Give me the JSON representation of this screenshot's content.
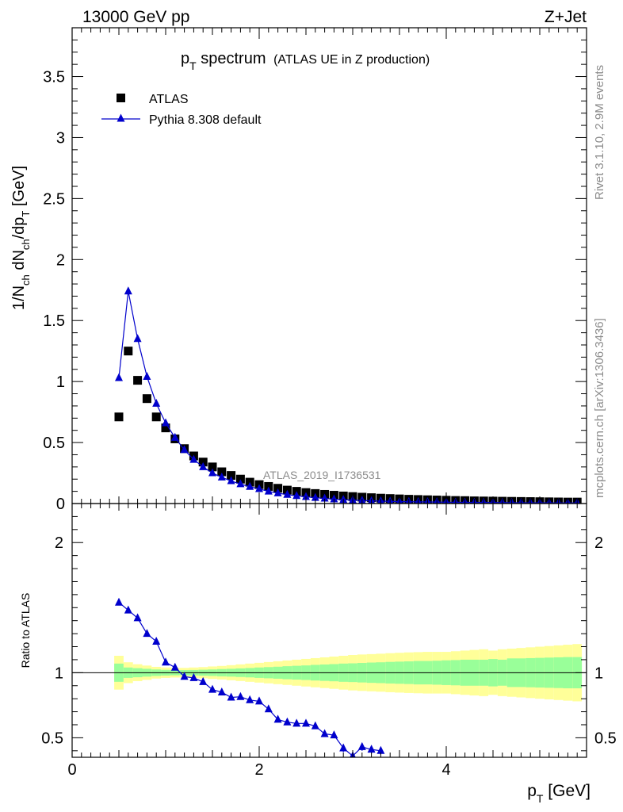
{
  "header": {
    "left": "13000 GeV pp",
    "right": "Z+Jet"
  },
  "title": {
    "main": "p",
    "main_sub": "T",
    "main_rest": " spectrum",
    "paren": "(ATLAS UE in Z production)"
  },
  "side_labels": {
    "top": "Rivet 3.1.10,  2.9M events",
    "bottom": "mcplots.cern.ch [arXiv:1306.3436]"
  },
  "watermark": "ATLAS_2019_I1736531",
  "colors": {
    "data": "#000000",
    "mc": "#0000cc",
    "band_inner": "#99ff99",
    "band_outer": "#ffff99"
  },
  "chart_data": [
    {
      "type": "scatter",
      "title": "pT spectrum (ATLAS UE in Z production)",
      "ylabel_parts": [
        "1/N",
        "ch",
        " dN",
        "ch",
        "/dp",
        "T",
        " [GeV]"
      ],
      "xlim": [
        0,
        5.5
      ],
      "ylim": [
        0,
        3.9
      ],
      "yticks": [
        0,
        0.5,
        1,
        1.5,
        2,
        2.5,
        3,
        3.5
      ],
      "ytick_labels": [
        "0",
        "0.5",
        "1",
        "1.5",
        "2",
        "2.5",
        "3",
        "3.5"
      ],
      "legend": {
        "position": "top-left",
        "entries": [
          "ATLAS",
          "Pythia 8.308 default"
        ]
      },
      "series": [
        {
          "name": "ATLAS",
          "marker": "square",
          "x": [
            0.5,
            0.6,
            0.7,
            0.8,
            0.9,
            1.0,
            1.1,
            1.2,
            1.3,
            1.4,
            1.5,
            1.6,
            1.7,
            1.8,
            1.9,
            2.0,
            2.1,
            2.2,
            2.3,
            2.4,
            2.5,
            2.6,
            2.7,
            2.8,
            2.9,
            3.0,
            3.1,
            3.2,
            3.3,
            3.4,
            3.5,
            3.6,
            3.7,
            3.8,
            3.9,
            4.0,
            4.1,
            4.2,
            4.3,
            4.4,
            4.5,
            4.6,
            4.7,
            4.8,
            4.9,
            5.0,
            5.1,
            5.2,
            5.3,
            5.4
          ],
          "y": [
            0.71,
            1.25,
            1.01,
            0.86,
            0.71,
            0.62,
            0.53,
            0.45,
            0.39,
            0.34,
            0.3,
            0.26,
            0.23,
            0.2,
            0.175,
            0.155,
            0.14,
            0.125,
            0.11,
            0.1,
            0.09,
            0.082,
            0.075,
            0.068,
            0.062,
            0.057,
            0.052,
            0.048,
            0.044,
            0.041,
            0.038,
            0.035,
            0.033,
            0.031,
            0.029,
            0.027,
            0.025,
            0.024,
            0.022,
            0.021,
            0.02,
            0.019,
            0.018,
            0.017,
            0.016,
            0.015,
            0.014,
            0.013,
            0.012,
            0.012
          ]
        },
        {
          "name": "Pythia 8.308 default",
          "marker": "triangle",
          "x": [
            0.5,
            0.6,
            0.7,
            0.8,
            0.9,
            1.0,
            1.1,
            1.2,
            1.3,
            1.4,
            1.5,
            1.6,
            1.7,
            1.8,
            1.9,
            2.0,
            2.1,
            2.2,
            2.3,
            2.4,
            2.5,
            2.6,
            2.7,
            2.8,
            2.9,
            3.0,
            3.1,
            3.2,
            3.3,
            3.4,
            3.5,
            3.6,
            3.7,
            3.8,
            3.9,
            4.0,
            4.1,
            4.2,
            4.3,
            4.4,
            4.5,
            4.6,
            4.7,
            4.8,
            4.9,
            5.0,
            5.1,
            5.2,
            5.3,
            5.4
          ],
          "y": [
            1.03,
            1.74,
            1.35,
            1.04,
            0.82,
            0.66,
            0.54,
            0.44,
            0.36,
            0.3,
            0.25,
            0.215,
            0.185,
            0.16,
            0.138,
            0.12,
            0.1,
            0.085,
            0.073,
            0.063,
            0.055,
            0.048,
            0.042,
            0.036,
            0.031,
            0.028,
            0.025,
            0.022,
            0.02,
            0.018,
            0.016,
            0.015,
            0.014,
            0.013,
            0.012,
            0.011,
            0.01,
            0.01,
            0.009,
            0.009,
            0.008,
            0.008,
            0.007,
            0.007,
            0.006,
            0.006,
            0.006,
            0.005,
            0.005,
            0.005
          ]
        }
      ]
    },
    {
      "type": "line",
      "ylabel": "Ratio to ATLAS",
      "xlabel_parts": [
        "p",
        "T",
        " [GeV]"
      ],
      "xlim": [
        0,
        5.5
      ],
      "ylim": [
        0.35,
        2.3
      ],
      "xticks": [
        0,
        2,
        4
      ],
      "xtick_labels": [
        "0",
        "2",
        "4"
      ],
      "yticks": [
        0.5,
        1,
        2
      ],
      "ytick_labels": [
        "0.5",
        "1",
        "2"
      ],
      "reference_line": 1,
      "band_x_edges": [
        0.45,
        0.55,
        0.65,
        0.75,
        0.85,
        0.95,
        1.05,
        1.15,
        1.25,
        1.35,
        1.45,
        1.55,
        1.65,
        1.75,
        1.85,
        1.95,
        2.05,
        2.15,
        2.25,
        2.35,
        2.45,
        2.55,
        2.65,
        2.75,
        2.85,
        2.95,
        3.05,
        3.15,
        3.25,
        3.35,
        3.45,
        3.55,
        3.65,
        3.75,
        3.85,
        3.95,
        4.05,
        4.15,
        4.25,
        4.35,
        4.45,
        4.55,
        4.65,
        4.75,
        4.85,
        4.95,
        5.05,
        5.15,
        5.25,
        5.35,
        5.45
      ],
      "band_inner_halfwidth": [
        0.07,
        0.04,
        0.035,
        0.03,
        0.025,
        0.022,
        0.02,
        0.02,
        0.021,
        0.023,
        0.025,
        0.028,
        0.03,
        0.033,
        0.036,
        0.04,
        0.043,
        0.046,
        0.05,
        0.053,
        0.056,
        0.06,
        0.063,
        0.066,
        0.07,
        0.072,
        0.075,
        0.078,
        0.08,
        0.083,
        0.085,
        0.087,
        0.09,
        0.09,
        0.092,
        0.095,
        0.097,
        0.1,
        0.1,
        0.1,
        0.105,
        0.1,
        0.11,
        0.11,
        0.112,
        0.114,
        0.116,
        0.118,
        0.12,
        0.12
      ],
      "band_outer_halfwidth": [
        0.13,
        0.08,
        0.065,
        0.055,
        0.045,
        0.04,
        0.037,
        0.037,
        0.04,
        0.043,
        0.048,
        0.052,
        0.058,
        0.064,
        0.07,
        0.076,
        0.082,
        0.088,
        0.094,
        0.1,
        0.106,
        0.112,
        0.118,
        0.124,
        0.13,
        0.136,
        0.14,
        0.143,
        0.146,
        0.15,
        0.153,
        0.156,
        0.158,
        0.16,
        0.16,
        0.16,
        0.165,
        0.17,
        0.175,
        0.18,
        0.17,
        0.18,
        0.185,
        0.19,
        0.195,
        0.2,
        0.205,
        0.21,
        0.215,
        0.22
      ],
      "series": [
        {
          "name": "Pythia 8.308 default",
          "x": [
            0.5,
            0.6,
            0.7,
            0.8,
            0.9,
            1.0,
            1.1,
            1.2,
            1.3,
            1.4,
            1.5,
            1.6,
            1.7,
            1.8,
            1.9,
            2.0,
            2.1,
            2.2,
            2.3,
            2.4,
            2.5,
            2.6,
            2.7,
            2.8,
            2.9,
            3.0,
            3.1,
            3.2,
            3.3
          ],
          "y": [
            1.54,
            1.48,
            1.42,
            1.3,
            1.24,
            1.08,
            1.04,
            0.97,
            0.96,
            0.93,
            0.87,
            0.85,
            0.81,
            0.815,
            0.79,
            0.78,
            0.72,
            0.64,
            0.62,
            0.61,
            0.61,
            0.59,
            0.53,
            0.52,
            0.42,
            0.36,
            0.43,
            0.41,
            0.4
          ],
          "err": [
            0.02,
            0.02,
            0.02,
            0.02,
            0.02,
            0.02,
            0.02,
            0.02,
            0.02,
            0.02,
            0.02,
            0.02,
            0.02,
            0.02,
            0.02,
            0.02,
            0.02,
            0.02,
            0.02,
            0.02,
            0.02,
            0.02,
            0.02,
            0.02,
            0.03,
            0.03,
            0.03,
            0.03,
            0.03
          ]
        }
      ]
    }
  ]
}
